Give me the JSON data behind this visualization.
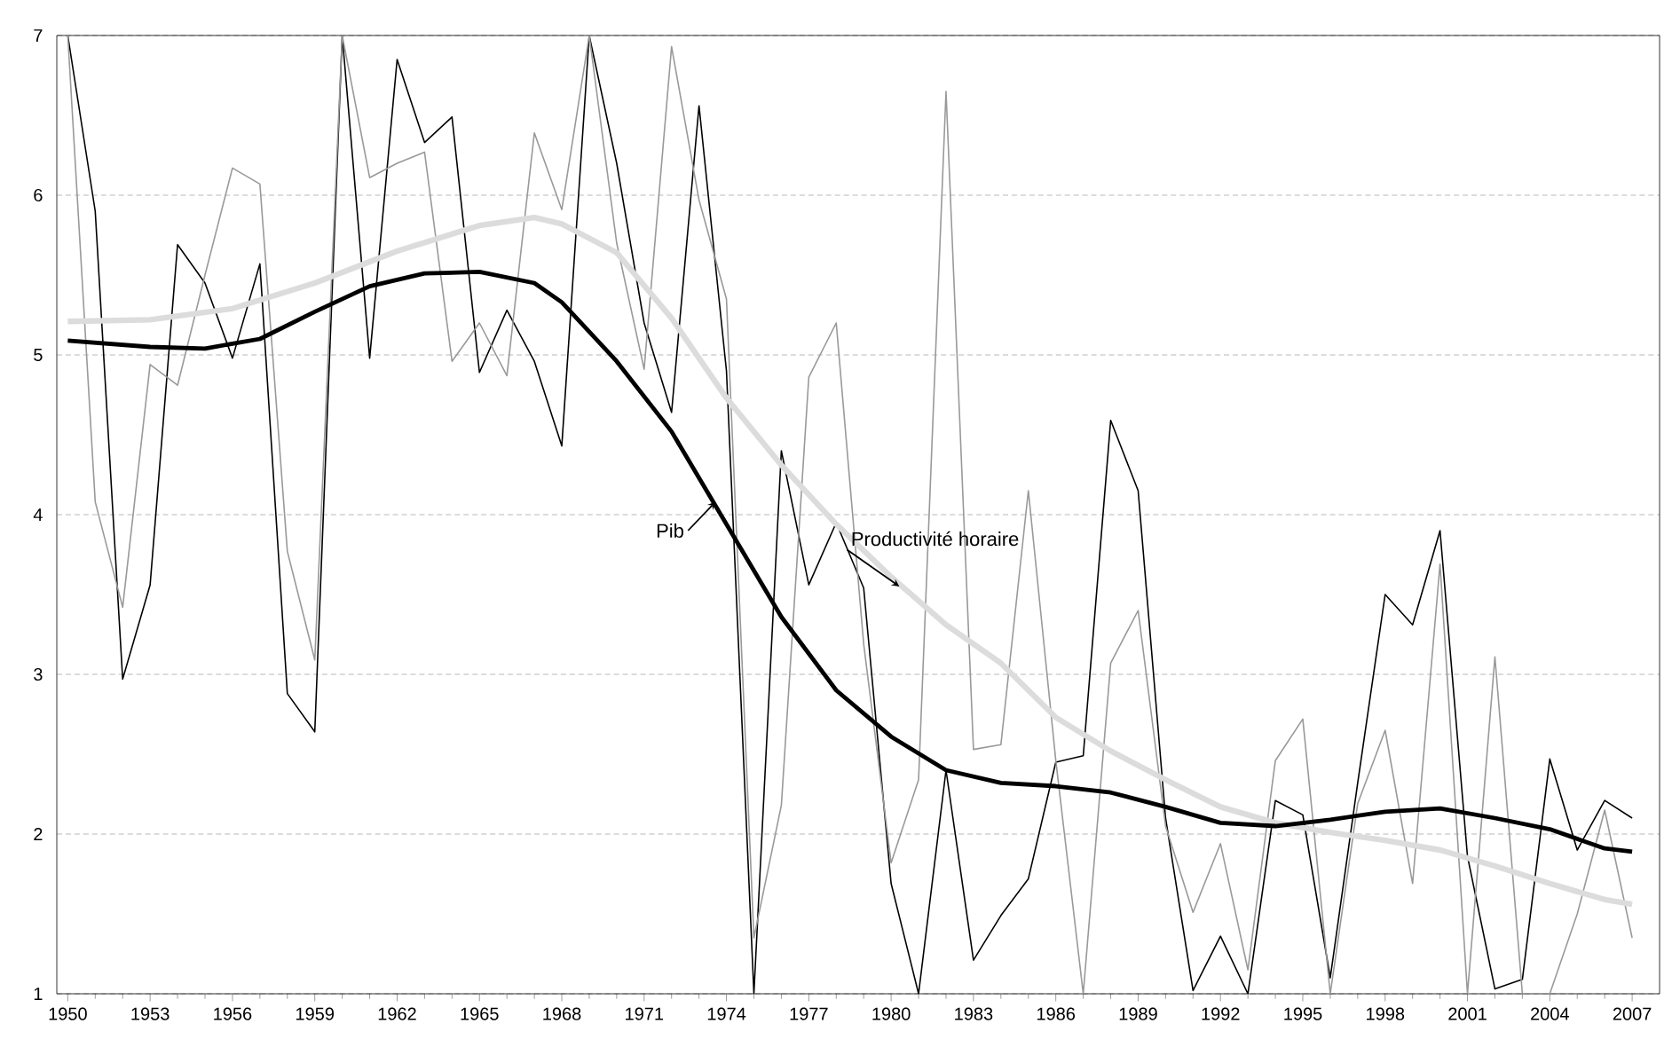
{
  "chart_data": {
    "type": "line",
    "x": [
      1950,
      1951,
      1952,
      1953,
      1954,
      1955,
      1956,
      1957,
      1958,
      1959,
      1960,
      1961,
      1962,
      1963,
      1964,
      1965,
      1966,
      1967,
      1968,
      1969,
      1970,
      1971,
      1972,
      1973,
      1974,
      1975,
      1976,
      1977,
      1978,
      1979,
      1980,
      1981,
      1982,
      1983,
      1984,
      1985,
      1986,
      1987,
      1988,
      1989,
      1990,
      1991,
      1992,
      1993,
      1994,
      1995,
      1996,
      1997,
      1998,
      1999,
      2000,
      2001,
      2002,
      2003,
      2004,
      2005,
      2006,
      2007
    ],
    "series": [
      {
        "color": "#000000",
        "values": [
          7,
          5.9,
          2.97,
          3.56,
          5.69,
          5.45,
          4.98,
          5.57,
          2.88,
          2.64,
          7,
          4.98,
          6.85,
          6.33,
          6.49,
          4.89,
          5.28,
          4.96,
          4.43,
          7,
          6.2,
          5.2,
          4.64,
          6.56,
          4.9,
          1,
          4.4,
          3.56,
          3.95,
          3.54,
          1.69,
          1,
          2.4,
          1.21,
          1.49,
          1.72,
          2.45,
          2.49,
          4.59,
          4.15,
          2.1,
          1.02,
          1.36,
          1,
          2.21,
          2.12,
          1.1,
          2.32,
          3.5,
          3.31,
          3.9,
          1.86,
          1.03,
          1.09,
          2.47,
          1.9,
          2.21,
          2.1
        ]
      },
      {
        "color": "#999999",
        "values": [
          7,
          4.08,
          3.42,
          4.94,
          4.81,
          5.5,
          6.17,
          6.07,
          3.77,
          3.09,
          7,
          6.11,
          6.2,
          6.27,
          4.96,
          5.2,
          4.87,
          6.39,
          5.91,
          7,
          5.7,
          4.91,
          6.93,
          5.97,
          5.35,
          1.35,
          2.18,
          4.86,
          5.2,
          3.19,
          1.82,
          2.34,
          6.65,
          2.53,
          2.56,
          4.15,
          2.46,
          1,
          3.07,
          3.4,
          2.05,
          1.51,
          1.94,
          1.15,
          2.46,
          2.72,
          1,
          2.19,
          2.65,
          1.69,
          3.69,
          1,
          3.11,
          1,
          1,
          1.5,
          2.15,
          1.35
        ]
      },
      {
        "name": "Productivité horaire",
        "color": "#dcdcdc",
        "x": [
          1950,
          1953,
          1956,
          1959,
          1962,
          1965,
          1967,
          1968,
          1970,
          1972,
          1974,
          1976,
          1978,
          1980,
          1982,
          1984,
          1986,
          1988,
          1990,
          1992,
          1994,
          1996,
          1998,
          2000,
          2002,
          2004,
          2006,
          2007
        ],
        "values": [
          5.21,
          5.22,
          5.29,
          5.45,
          5.65,
          5.81,
          5.86,
          5.82,
          5.64,
          5.23,
          4.73,
          4.31,
          3.94,
          3.61,
          3.31,
          3.07,
          2.73,
          2.52,
          2.34,
          2.17,
          2.07,
          2.01,
          1.96,
          1.9,
          1.8,
          1.69,
          1.59,
          1.56
        ]
      },
      {
        "name": "Pib",
        "color": "#000000",
        "x": [
          1950,
          1953,
          1955,
          1957,
          1959,
          1961,
          1963,
          1965,
          1967,
          1968,
          1970,
          1972,
          1974,
          1976,
          1978,
          1980,
          1982,
          1984,
          1986,
          1988,
          1990,
          1992,
          1994,
          1996,
          1998,
          2000,
          2002,
          2004,
          2006,
          2007
        ],
        "values": [
          5.09,
          5.05,
          5.04,
          5.1,
          5.27,
          5.43,
          5.51,
          5.52,
          5.45,
          5.33,
          4.96,
          4.52,
          3.94,
          3.36,
          2.9,
          2.61,
          2.4,
          2.32,
          2.3,
          2.26,
          2.17,
          2.07,
          2.05,
          2.09,
          2.14,
          2.16,
          2.1,
          2.03,
          1.91,
          1.89
        ]
      }
    ],
    "xlim": [
      1949.6,
      2008.0
    ],
    "xticks": [
      1950,
      1953,
      1956,
      1959,
      1962,
      1965,
      1968,
      1971,
      1974,
      1977,
      1980,
      1983,
      1986,
      1989,
      1992,
      1995,
      1998,
      2001,
      2004,
      2007
    ],
    "ylim": [
      1,
      7
    ],
    "yticks": [
      1,
      2,
      3,
      4,
      5,
      6,
      7
    ],
    "grid": "y",
    "marker": "none",
    "line_style": "solid"
  }
}
